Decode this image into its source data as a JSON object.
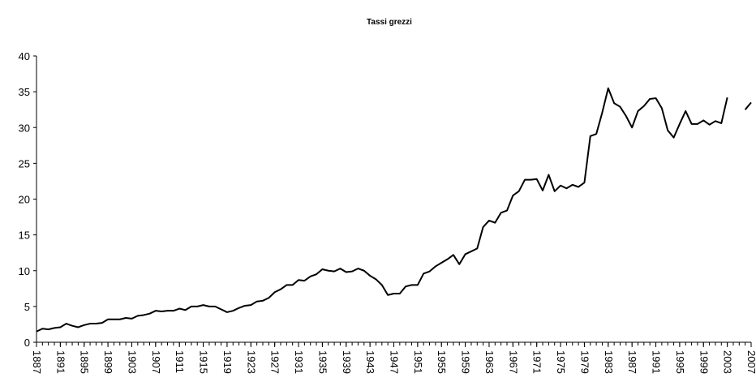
{
  "chart_data": {
    "type": "line",
    "title": "Tassi grezzi",
    "x": [
      1887,
      1888,
      1889,
      1890,
      1891,
      1892,
      1893,
      1894,
      1895,
      1896,
      1897,
      1898,
      1899,
      1900,
      1901,
      1902,
      1903,
      1904,
      1905,
      1906,
      1907,
      1908,
      1909,
      1910,
      1911,
      1912,
      1913,
      1914,
      1915,
      1916,
      1917,
      1918,
      1919,
      1920,
      1921,
      1922,
      1923,
      1924,
      1925,
      1926,
      1927,
      1928,
      1929,
      1930,
      1931,
      1932,
      1933,
      1934,
      1935,
      1936,
      1937,
      1938,
      1939,
      1940,
      1941,
      1942,
      1943,
      1944,
      1945,
      1946,
      1947,
      1948,
      1949,
      1950,
      1951,
      1952,
      1953,
      1954,
      1955,
      1956,
      1957,
      1958,
      1959,
      1960,
      1961,
      1962,
      1963,
      1964,
      1965,
      1966,
      1967,
      1968,
      1969,
      1970,
      1971,
      1972,
      1973,
      1974,
      1975,
      1976,
      1977,
      1978,
      1979,
      1980,
      1981,
      1982,
      1983,
      1984,
      1985,
      1986,
      1987,
      1988,
      1989,
      1990,
      1991,
      1992,
      1993,
      1994,
      1995,
      1996,
      1997,
      1998,
      1999,
      2000,
      2001,
      2002,
      2003,
      2004,
      2005,
      2006,
      2007
    ],
    "series": [
      {
        "color": "#000000",
        "values": [
          1.5,
          1.9,
          1.8,
          2.0,
          2.1,
          2.6,
          2.3,
          2.1,
          2.4,
          2.6,
          2.6,
          2.7,
          3.2,
          3.2,
          3.2,
          3.4,
          3.3,
          3.7,
          3.8,
          4.0,
          4.4,
          4.3,
          4.4,
          4.4,
          4.7,
          4.5,
          5.0,
          5.0,
          5.2,
          5.0,
          5.0,
          4.6,
          4.2,
          4.4,
          4.8,
          5.1,
          5.2,
          5.7,
          5.8,
          6.2,
          7.0,
          7.4,
          8.0,
          8.0,
          8.7,
          8.6,
          9.2,
          9.5,
          10.2,
          10.0,
          9.9,
          10.3,
          9.8,
          9.9,
          10.3,
          10.0,
          9.3,
          8.8,
          8.0,
          6.6,
          6.8,
          6.8,
          7.8,
          8.0,
          8.0,
          9.6,
          9.9,
          10.6,
          11.1,
          11.6,
          12.2,
          10.9,
          12.3,
          12.7,
          13.1,
          16.1,
          17.0,
          16.7,
          18.1,
          18.4,
          20.5,
          21.1,
          22.7,
          22.7,
          22.8,
          21.2,
          23.4,
          21.1,
          21.9,
          21.5,
          22.0,
          21.7,
          22.3,
          28.8,
          29.1,
          32.1,
          35.5,
          33.4,
          32.9,
          31.6,
          30.0,
          32.3,
          33.0,
          34.0,
          34.1,
          32.7,
          29.6,
          28.6,
          30.5,
          32.3,
          30.5,
          30.5,
          31.0,
          30.4,
          30.9,
          30.6,
          34.2,
          null,
          null,
          32.5,
          33.5
        ]
      }
    ],
    "xlim": [
      1887,
      2007
    ],
    "xticks": [
      1887,
      1891,
      1895,
      1899,
      1903,
      1907,
      1911,
      1915,
      1919,
      1923,
      1927,
      1931,
      1935,
      1939,
      1943,
      1947,
      1951,
      1955,
      1959,
      1963,
      1967,
      1971,
      1975,
      1979,
      1983,
      1987,
      1991,
      1995,
      1999,
      2003,
      2007
    ],
    "ylim": [
      0,
      40
    ],
    "yticks": [
      0,
      5,
      10,
      15,
      20,
      25,
      30,
      35,
      40
    ]
  }
}
